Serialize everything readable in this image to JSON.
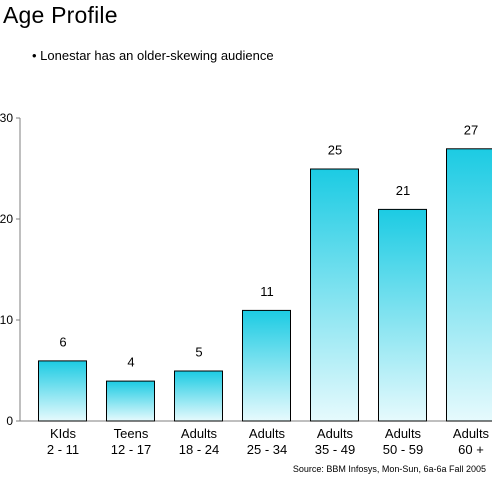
{
  "page": {
    "title": "Age Profile",
    "bullet_text": "• Lonestar has an older-skewing audience",
    "source": "Source: BBM Infosys, Mon-Sun, 6a-6a Fall 2005"
  },
  "colors": {
    "bar_top": "#1ccbe3",
    "bar_bottom": "#e6fafd",
    "bar_stroke": "#000000",
    "axis": "#7f7f7f"
  },
  "chart_data": {
    "type": "bar",
    "title": "Age Profile",
    "xlabel": "",
    "ylabel": "",
    "ylim": [
      0,
      30
    ],
    "yticks": [
      "0",
      "10",
      "20",
      "30"
    ],
    "grid": false,
    "legend": "none",
    "categories": [
      [
        "KIds",
        "2 - 11"
      ],
      [
        "Teens",
        "12 - 17"
      ],
      [
        "Adults",
        "18 - 24"
      ],
      [
        "Adults",
        "25 - 34"
      ],
      [
        "Adults",
        "35 - 49"
      ],
      [
        "Adults",
        "50 - 59"
      ],
      [
        "Adults",
        "60 +"
      ]
    ],
    "values": [
      6,
      4,
      5,
      11,
      25,
      21,
      27
    ],
    "data_labels": [
      "6",
      "4",
      "5",
      "11",
      "25",
      "21",
      "27"
    ]
  }
}
